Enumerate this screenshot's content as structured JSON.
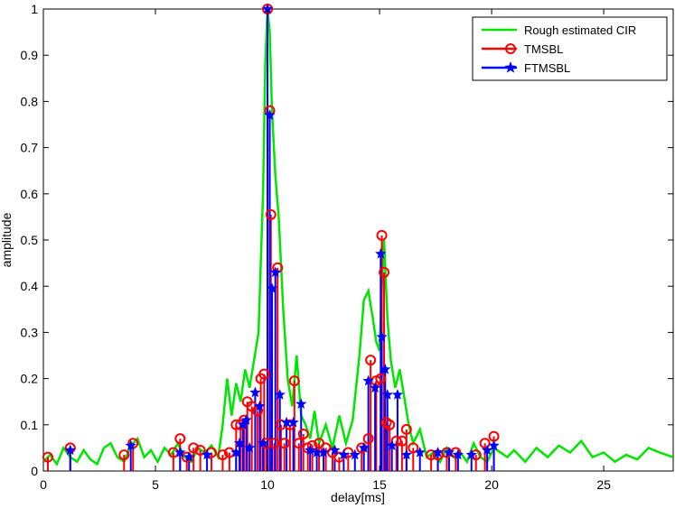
{
  "chart_data": {
    "type": "line",
    "xlabel": "delay[ms]",
    "ylabel": "amplitude",
    "xlim": [
      0,
      28.1
    ],
    "ylim": [
      0,
      1
    ],
    "x_ticks": [
      0,
      5,
      10,
      15,
      20,
      25
    ],
    "y_ticks": [
      0,
      0.1,
      0.2,
      0.3,
      0.4,
      0.5,
      0.6,
      0.7,
      0.8,
      0.9,
      1
    ],
    "grid": false,
    "legend_position": "top-right",
    "legend": [
      "Rough estimated CIR",
      "TMSBL",
      "FTMSBL"
    ],
    "colors": {
      "cir": "#00e600",
      "tmsbl": "#ff0000",
      "ftmsbl": "#0000ff"
    },
    "series": [
      {
        "name": "Rough estimated CIR",
        "kind": "line",
        "x": [
          0,
          0.3,
          0.6,
          0.9,
          1.2,
          1.5,
          1.8,
          2.1,
          2.4,
          2.7,
          3.0,
          3.3,
          3.6,
          3.9,
          4.2,
          4.5,
          4.8,
          5.1,
          5.4,
          5.7,
          6.0,
          6.3,
          6.6,
          6.9,
          7.2,
          7.5,
          7.8,
          8.0,
          8.2,
          8.4,
          8.6,
          8.8,
          9.0,
          9.2,
          9.4,
          9.6,
          9.8,
          9.9,
          10.0,
          10.1,
          10.2,
          10.35,
          10.5,
          10.7,
          10.9,
          11.1,
          11.3,
          11.5,
          11.7,
          11.9,
          12.1,
          12.3,
          12.6,
          12.9,
          13.2,
          13.5,
          13.8,
          14.1,
          14.3,
          14.5,
          14.7,
          14.85,
          15.0,
          15.1,
          15.2,
          15.35,
          15.5,
          15.7,
          15.9,
          16.1,
          16.3,
          16.5,
          16.8,
          17.1,
          17.4,
          17.7,
          18.0,
          18.3,
          18.6,
          18.9,
          19.2,
          19.5,
          19.8,
          20.1,
          20.4,
          20.7,
          21.0,
          21.5,
          22.0,
          22.5,
          23.0,
          23.5,
          24.0,
          24.5,
          25.0,
          25.5,
          26.0,
          26.5,
          27.0,
          27.5,
          28.1
        ],
        "y": [
          0.02,
          0.035,
          0.015,
          0.05,
          0.03,
          0.02,
          0.045,
          0.025,
          0.015,
          0.05,
          0.06,
          0.03,
          0.02,
          0.055,
          0.07,
          0.03,
          0.045,
          0.02,
          0.05,
          0.035,
          0.06,
          0.03,
          0.02,
          0.05,
          0.04,
          0.055,
          0.03,
          0.1,
          0.2,
          0.12,
          0.19,
          0.15,
          0.22,
          0.18,
          0.24,
          0.3,
          0.6,
          0.88,
          1.0,
          0.95,
          0.78,
          0.64,
          0.55,
          0.35,
          0.2,
          0.14,
          0.25,
          0.12,
          0.1,
          0.07,
          0.13,
          0.06,
          0.1,
          0.05,
          0.12,
          0.06,
          0.11,
          0.25,
          0.37,
          0.39,
          0.33,
          0.28,
          0.26,
          0.4,
          0.5,
          0.33,
          0.24,
          0.18,
          0.22,
          0.16,
          0.1,
          0.06,
          0.09,
          0.03,
          0.04,
          0.02,
          0.05,
          0.03,
          0.04,
          0.02,
          0.06,
          0.03,
          0.02,
          0.05,
          0.04,
          0.03,
          0.045,
          0.02,
          0.05,
          0.03,
          0.055,
          0.04,
          0.065,
          0.03,
          0.04,
          0.02,
          0.035,
          0.025,
          0.05,
          0.04,
          0.03
        ]
      },
      {
        "name": "TMSBL",
        "kind": "stem-circle",
        "x": [
          0.2,
          1.2,
          3.6,
          4.0,
          5.8,
          6.1,
          6.4,
          6.7,
          7.0,
          7.5,
          8.0,
          8.3,
          8.6,
          8.8,
          8.95,
          9.1,
          9.3,
          9.55,
          9.7,
          9.85,
          9.95,
          10.0,
          10.1,
          10.15,
          10.3,
          10.45,
          10.6,
          10.75,
          11.0,
          11.2,
          11.4,
          11.6,
          11.8,
          12.0,
          12.3,
          12.6,
          12.9,
          13.2,
          13.6,
          14.2,
          14.5,
          14.6,
          14.85,
          15.05,
          15.1,
          15.2,
          15.3,
          15.45,
          15.75,
          16.0,
          16.2,
          16.5,
          17.3,
          17.6,
          18.0,
          18.4,
          19.3,
          19.7,
          20.1
        ],
        "y": [
          0.03,
          0.05,
          0.035,
          0.06,
          0.04,
          0.07,
          0.03,
          0.05,
          0.045,
          0.04,
          0.035,
          0.04,
          0.1,
          0.1,
          0.11,
          0.15,
          0.14,
          0.13,
          0.2,
          0.21,
          0.06,
          1.0,
          0.78,
          0.555,
          0.06,
          0.44,
          0.1,
          0.06,
          0.1,
          0.195,
          0.06,
          0.08,
          0.05,
          0.055,
          0.06,
          0.05,
          0.04,
          0.03,
          0.04,
          0.05,
          0.07,
          0.24,
          0.195,
          0.2,
          0.51,
          0.43,
          0.105,
          0.1,
          0.065,
          0.065,
          0.09,
          0.05,
          0.035,
          0.035,
          0.04,
          0.04,
          0.035,
          0.06,
          0.075
        ]
      },
      {
        "name": "FTMSBL",
        "kind": "stem-star",
        "x": [
          1.2,
          3.9,
          6.1,
          6.5,
          7.3,
          8.6,
          8.75,
          8.9,
          9.05,
          9.2,
          9.45,
          9.65,
          9.8,
          10.0,
          10.1,
          10.2,
          10.35,
          10.55,
          10.85,
          11.15,
          11.5,
          11.9,
          12.2,
          12.5,
          13.0,
          13.4,
          13.9,
          14.3,
          14.5,
          14.8,
          15.05,
          15.1,
          15.25,
          15.35,
          15.55,
          15.8,
          16.2,
          16.8,
          17.6,
          18.1,
          18.5,
          19.1,
          19.8,
          20.1
        ],
        "y": [
          0.045,
          0.055,
          0.04,
          0.03,
          0.035,
          0.04,
          0.06,
          0.1,
          0.11,
          0.05,
          0.17,
          0.14,
          0.06,
          1.0,
          0.77,
          0.395,
          0.43,
          0.165,
          0.105,
          0.105,
          0.145,
          0.045,
          0.04,
          0.04,
          0.045,
          0.035,
          0.035,
          0.05,
          0.195,
          0.18,
          0.47,
          0.29,
          0.22,
          0.165,
          0.055,
          0.165,
          0.035,
          0.04,
          0.04,
          0.04,
          0.035,
          0.035,
          0.045,
          0.055
        ]
      }
    ]
  }
}
